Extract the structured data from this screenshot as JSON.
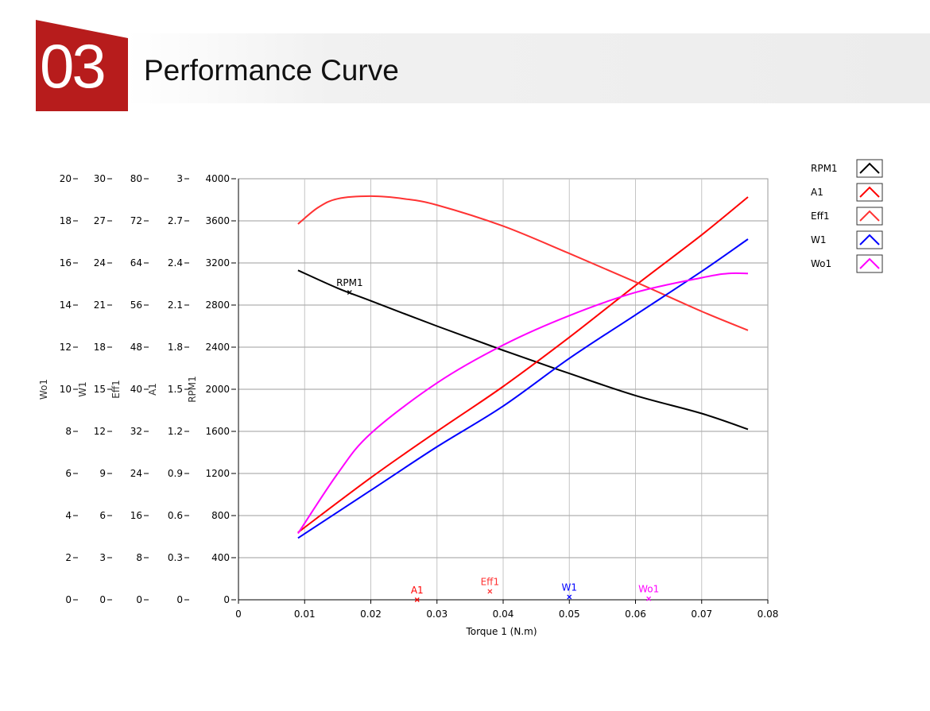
{
  "header": {
    "number": "03",
    "title": "Performance Curve"
  },
  "chart_data": {
    "type": "line",
    "xlabel": "Torque 1 (N.m)",
    "xlim": [
      0,
      0.08
    ],
    "x_ticks": [
      "0",
      "0.01",
      "0.02",
      "0.03",
      "0.04",
      "0.05",
      "0.06",
      "0.07",
      "0.08"
    ],
    "y_axes": [
      {
        "label": "RPM1",
        "ylim": [
          0,
          4000
        ],
        "ticks": [
          "0",
          "400",
          "800",
          "1200",
          "1600",
          "2000",
          "2400",
          "2800",
          "3200",
          "3600",
          "4000"
        ]
      },
      {
        "label": "A1",
        "ylim": [
          0,
          3
        ],
        "ticks": [
          "0",
          "0.3",
          "0.6",
          "0.9",
          "1.2",
          "1.5",
          "1.8",
          "2.1",
          "2.4",
          "2.7",
          "3"
        ]
      },
      {
        "label": "Eff1",
        "ylim": [
          0,
          80
        ],
        "ticks": [
          "0",
          "8",
          "16",
          "24",
          "32",
          "40",
          "48",
          "56",
          "64",
          "72",
          "80"
        ]
      },
      {
        "label": "W1",
        "ylim": [
          0,
          30
        ],
        "ticks": [
          "0",
          "3",
          "6",
          "9",
          "12",
          "15",
          "18",
          "21",
          "24",
          "27",
          "30"
        ]
      },
      {
        "label": "Wo1",
        "ylim": [
          0,
          20
        ],
        "ticks": [
          "0",
          "2",
          "4",
          "6",
          "8",
          "10",
          "12",
          "14",
          "16",
          "18",
          "20"
        ]
      }
    ],
    "grid": true,
    "legend_position": "top-right",
    "series": [
      {
        "name": "RPM1",
        "color": "#000000",
        "axis": 0,
        "x": [
          0.009,
          0.015,
          0.02,
          0.03,
          0.04,
          0.05,
          0.06,
          0.07,
          0.077
        ],
        "y": [
          3130,
          2960,
          2840,
          2600,
          2370,
          2150,
          1940,
          1770,
          1620
        ],
        "marker": {
          "x": 0.0168,
          "y": 2920
        }
      },
      {
        "name": "A1",
        "color": "#ff0000",
        "axis": 1,
        "x": [
          0.009,
          0.02,
          0.03,
          0.04,
          0.05,
          0.06,
          0.07,
          0.077
        ],
        "y": [
          0.48,
          0.87,
          1.2,
          1.52,
          1.87,
          2.24,
          2.6,
          2.87
        ],
        "marker": {
          "x": 0.027,
          "y": 0.0
        }
      },
      {
        "name": "Eff1",
        "color": "#ff3333",
        "axis": 2,
        "x": [
          0.009,
          0.012,
          0.015,
          0.02,
          0.025,
          0.03,
          0.04,
          0.05,
          0.06,
          0.07,
          0.077
        ],
        "y": [
          71.4,
          74.5,
          76.2,
          76.7,
          76.2,
          75.0,
          71.0,
          65.8,
          60.4,
          54.8,
          51.2
        ],
        "marker": {
          "x": 0.038,
          "y": 1.6
        }
      },
      {
        "name": "W1",
        "color": "#0000ff",
        "axis": 3,
        "x": [
          0.009,
          0.02,
          0.03,
          0.04,
          0.05,
          0.06,
          0.07,
          0.077
        ],
        "y": [
          4.4,
          7.8,
          10.9,
          13.8,
          17.2,
          20.3,
          23.4,
          25.7
        ],
        "marker": {
          "x": 0.05,
          "y": 0.2
        }
      },
      {
        "name": "Wo1",
        "color": "#ff00ff",
        "axis": 4,
        "x": [
          0.009,
          0.015,
          0.02,
          0.03,
          0.04,
          0.05,
          0.06,
          0.07,
          0.074,
          0.077
        ],
        "y": [
          3.15,
          6.0,
          7.9,
          10.3,
          12.1,
          13.5,
          14.6,
          15.3,
          15.5,
          15.5
        ],
        "marker": {
          "x": 0.062,
          "y": 0.05
        }
      }
    ]
  }
}
